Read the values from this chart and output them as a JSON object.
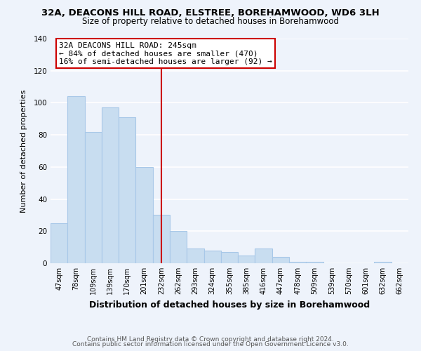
{
  "title1": "32A, DEACONS HILL ROAD, ELSTREE, BOREHAMWOOD, WD6 3LH",
  "title2": "Size of property relative to detached houses in Borehamwood",
  "xlabel": "Distribution of detached houses by size in Borehamwood",
  "ylabel": "Number of detached properties",
  "bar_values": [
    25,
    104,
    82,
    97,
    91,
    60,
    30,
    20,
    9,
    8,
    7,
    5,
    9,
    4,
    1,
    1,
    0,
    0,
    0,
    1,
    0
  ],
  "bar_labels": [
    "47sqm",
    "78sqm",
    "109sqm",
    "139sqm",
    "170sqm",
    "201sqm",
    "232sqm",
    "262sqm",
    "293sqm",
    "324sqm",
    "355sqm",
    "385sqm",
    "416sqm",
    "447sqm",
    "478sqm",
    "509sqm",
    "539sqm",
    "570sqm",
    "601sqm",
    "632sqm",
    "662sqm"
  ],
  "bar_color": "#c8ddf0",
  "bar_edge_color": "#a8c8e8",
  "vline_x": 6,
  "vline_color": "#cc0000",
  "annotation_title": "32A DEACONS HILL ROAD: 245sqm",
  "annotation_line1": "← 84% of detached houses are smaller (470)",
  "annotation_line2": "16% of semi-detached houses are larger (92) →",
  "annotation_box_color": "#ffffff",
  "annotation_box_edge_color": "#cc0000",
  "ylim": [
    0,
    140
  ],
  "yticks": [
    0,
    20,
    40,
    60,
    80,
    100,
    120,
    140
  ],
  "footer1": "Contains HM Land Registry data © Crown copyright and database right 2024.",
  "footer2": "Contains public sector information licensed under the Open Government Licence v3.0.",
  "bg_color": "#eef3fb",
  "grid_color": "#ffffff",
  "title1_fontsize": 9.5,
  "title2_fontsize": 8.5,
  "xlabel_fontsize": 9,
  "ylabel_fontsize": 8,
  "footer_fontsize": 6.5,
  "tick_fontsize": 7
}
